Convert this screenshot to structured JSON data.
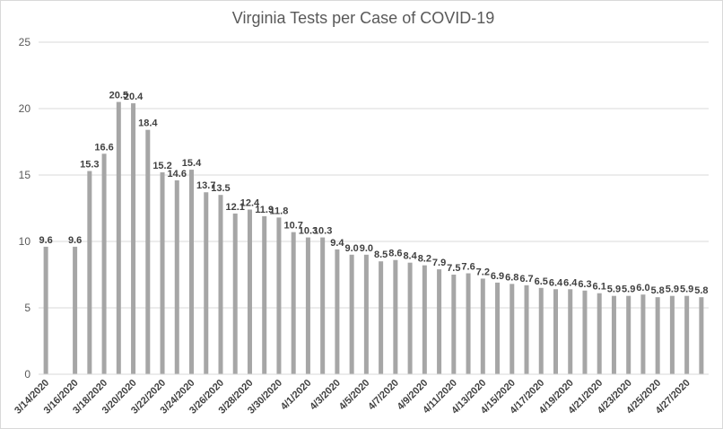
{
  "chart_data": {
    "type": "bar",
    "title": "Virginia Tests per Case of COVID-19",
    "xlabel": "",
    "ylabel": "",
    "ylim": [
      0,
      25
    ],
    "yticks": [
      0,
      5,
      10,
      15,
      20,
      25
    ],
    "grid": true,
    "legend": "none",
    "bar_color": "#a6a6a6",
    "grid_color": "#d9d9d9",
    "categories": [
      "3/14/2020",
      "3/15/2020",
      "3/16/2020",
      "3/17/2020",
      "3/18/2020",
      "3/19/2020",
      "3/20/2020",
      "3/21/2020",
      "3/22/2020",
      "3/23/2020",
      "3/24/2020",
      "3/25/2020",
      "3/26/2020",
      "3/27/2020",
      "3/28/2020",
      "3/29/2020",
      "3/30/2020",
      "3/31/2020",
      "4/1/2020",
      "4/2/2020",
      "4/3/2020",
      "4/4/2020",
      "4/5/2020",
      "4/6/2020",
      "4/7/2020",
      "4/8/2020",
      "4/9/2020",
      "4/10/2020",
      "4/11/2020",
      "4/12/2020",
      "4/13/2020",
      "4/14/2020",
      "4/15/2020",
      "4/16/2020",
      "4/17/2020",
      "4/18/2020",
      "4/19/2020",
      "4/20/2020",
      "4/21/2020",
      "4/22/2020",
      "4/23/2020",
      "4/24/2020",
      "4/25/2020",
      "4/26/2020",
      "4/27/2020",
      "4/28/2020"
    ],
    "tick_labels": [
      "3/14/2020",
      "3/16/2020",
      "3/18/2020",
      "3/20/2020",
      "3/22/2020",
      "3/24/2020",
      "3/26/2020",
      "3/28/2020",
      "3/30/2020",
      "4/1/2020",
      "4/3/2020",
      "4/5/2020",
      "4/7/2020",
      "4/9/2020",
      "4/11/2020",
      "4/13/2020",
      "4/15/2020",
      "4/17/2020",
      "4/19/2020",
      "4/21/2020",
      "4/23/2020",
      "4/25/2020",
      "4/27/2020"
    ],
    "values": [
      9.6,
      null,
      9.6,
      15.3,
      16.6,
      20.5,
      20.4,
      18.4,
      15.2,
      14.6,
      15.4,
      13.7,
      13.5,
      12.1,
      12.4,
      11.9,
      11.8,
      10.7,
      10.3,
      10.3,
      9.4,
      9.0,
      9.0,
      8.5,
      8.6,
      8.4,
      8.2,
      7.9,
      7.5,
      7.6,
      7.2,
      6.9,
      6.8,
      6.7,
      6.5,
      6.4,
      6.4,
      6.3,
      6.1,
      5.9,
      5.9,
      6.0,
      5.8,
      5.9,
      5.9,
      5.8
    ]
  }
}
